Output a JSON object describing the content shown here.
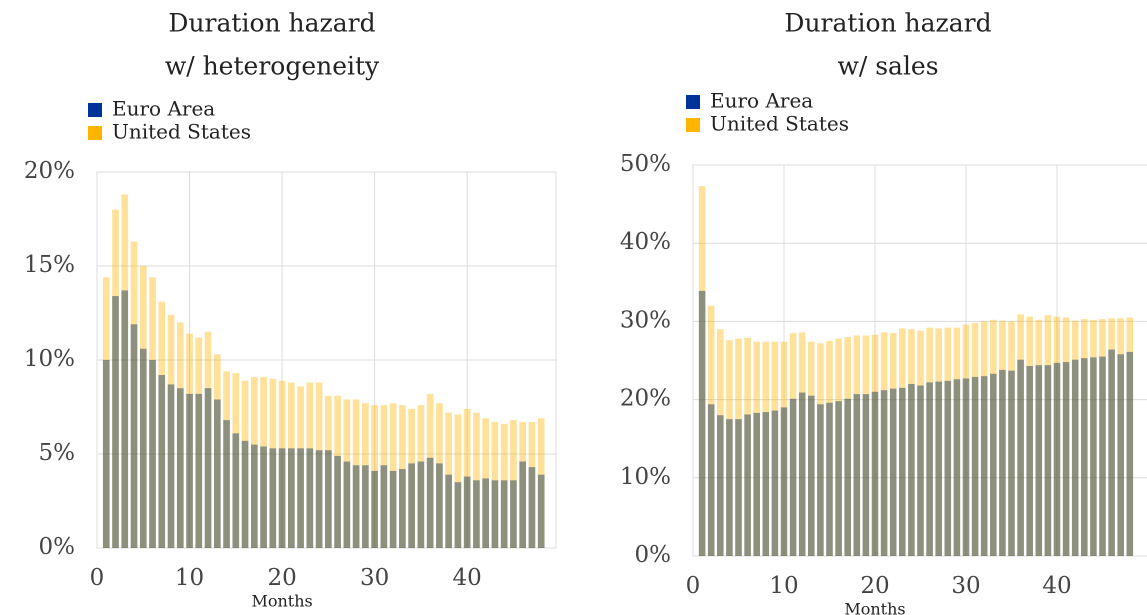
{
  "chart_data": [
    {
      "type": "bar",
      "title": [
        "Duration hazard",
        "w/ heterogeneity"
      ],
      "xlabel": "Months",
      "x": [
        1,
        2,
        3,
        4,
        5,
        6,
        7,
        8,
        9,
        10,
        11,
        12,
        13,
        14,
        15,
        16,
        17,
        18,
        19,
        20,
        21,
        22,
        23,
        24,
        25,
        26,
        27,
        28,
        29,
        30,
        31,
        32,
        33,
        34,
        35,
        36,
        37,
        38,
        39,
        40,
        41,
        42,
        43,
        44,
        45,
        46,
        47,
        48
      ],
      "series": [
        {
          "name": "Euro Area",
          "color": "#003399",
          "values": [
            10,
            13.4,
            13.7,
            11.9,
            10.6,
            10,
            9.2,
            8.7,
            8.5,
            8.2,
            8.2,
            8.5,
            7.9,
            6.8,
            6.1,
            5.7,
            5.5,
            5.4,
            5.3,
            5.3,
            5.3,
            5.3,
            5.3,
            5.2,
            5.2,
            4.9,
            4.6,
            4.4,
            4.4,
            4.1,
            4.4,
            4.1,
            4.2,
            4.5,
            4.6,
            4.8,
            4.5,
            3.9,
            3.5,
            3.8,
            3.6,
            3.7,
            3.6,
            3.6,
            3.6,
            4.6,
            4.3,
            3.9
          ]
        },
        {
          "name": "United States",
          "color": "#ffb400",
          "values": [
            14.4,
            18,
            18.8,
            16.3,
            15,
            14.4,
            13.1,
            12.4,
            12,
            11.4,
            11.2,
            11.5,
            10.3,
            9.4,
            9.3,
            8.9,
            9.1,
            9.1,
            9,
            8.9,
            8.8,
            8.6,
            8.8,
            8.8,
            8.1,
            8.1,
            7.9,
            7.9,
            7.7,
            7.6,
            7.6,
            7.7,
            7.6,
            7.4,
            7.6,
            8.2,
            7.7,
            7.2,
            7.1,
            7.4,
            7.2,
            6.9,
            6.7,
            6.6,
            6.8,
            6.7,
            6.7,
            6.9
          ]
        }
      ],
      "xlim": [
        0,
        49.6
      ],
      "xticks": [
        0,
        10,
        20,
        30,
        40
      ],
      "ylim": [
        0,
        20
      ],
      "yticks": [
        {
          "value": 0,
          "label": "0%"
        },
        {
          "value": 5,
          "label": "5%"
        },
        {
          "value": 10,
          "label": "10%"
        },
        {
          "value": 15,
          "label": "15%"
        },
        {
          "value": 20,
          "label": "20%"
        }
      ],
      "grid": true,
      "legend": "top-left"
    },
    {
      "type": "bar",
      "title": [
        "Duration hazard",
        "w/ sales"
      ],
      "xlabel": "Months",
      "x": [
        1,
        2,
        3,
        4,
        5,
        6,
        7,
        8,
        9,
        10,
        11,
        12,
        13,
        14,
        15,
        16,
        17,
        18,
        19,
        20,
        21,
        22,
        23,
        24,
        25,
        26,
        27,
        28,
        29,
        30,
        31,
        32,
        33,
        34,
        35,
        36,
        37,
        38,
        39,
        40,
        41,
        42,
        43,
        44,
        45,
        46,
        47,
        48
      ],
      "series": [
        {
          "name": "Euro Area",
          "color": "#003399",
          "values": [
            33.9,
            19.4,
            18,
            17.5,
            17.5,
            18.1,
            18.3,
            18.4,
            18.6,
            19,
            20.1,
            20.9,
            20.5,
            19.4,
            19.6,
            19.8,
            20.1,
            20.7,
            20.7,
            21,
            21.2,
            21.4,
            21.5,
            22,
            21.8,
            22.2,
            22.3,
            22.4,
            22.6,
            22.7,
            22.9,
            23,
            23.3,
            23.8,
            23.7,
            25.1,
            24.3,
            24.4,
            24.4,
            24.7,
            24.8,
            25.1,
            25.3,
            25.4,
            25.5,
            26.4,
            25.8,
            26.1
          ]
        },
        {
          "name": "United States",
          "color": "#ffb400",
          "values": [
            47.3,
            32,
            29,
            27.6,
            27.8,
            27.9,
            27.4,
            27.4,
            27.4,
            27.4,
            28.5,
            28.6,
            27.4,
            27.2,
            27.5,
            27.8,
            28,
            28.2,
            28.2,
            28.3,
            28.6,
            28.5,
            29.1,
            29,
            28.8,
            29.2,
            29.1,
            29.2,
            29.2,
            29.6,
            29.8,
            30,
            30.2,
            30.1,
            30,
            30.9,
            30.6,
            30.2,
            30.8,
            30.6,
            30.5,
            30.1,
            30.3,
            30.2,
            30.3,
            30.4,
            30.4,
            30.5
          ]
        }
      ],
      "xlim": [
        0,
        50
      ],
      "xticks": [
        0,
        10,
        20,
        30,
        40
      ],
      "ylim": [
        0,
        50
      ],
      "yticks": [
        {
          "value": 0,
          "label": "0%"
        },
        {
          "value": 10,
          "label": "10%"
        },
        {
          "value": 20,
          "label": "20%"
        },
        {
          "value": 30,
          "label": "30%"
        },
        {
          "value": 40,
          "label": "40%"
        },
        {
          "value": 50,
          "label": "50%"
        }
      ],
      "grid": true,
      "legend": "top-left"
    }
  ]
}
